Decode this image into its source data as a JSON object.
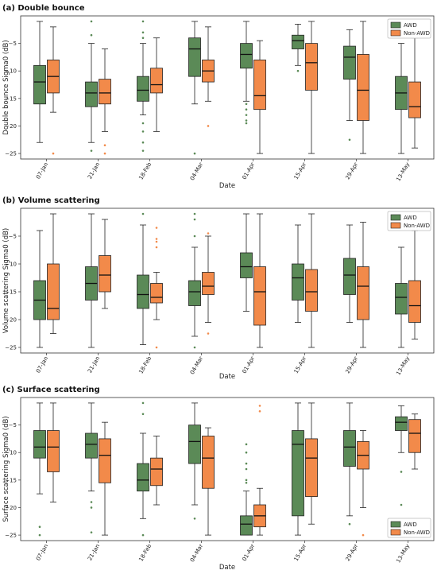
{
  "colors": {
    "awd": "#5b8a57",
    "non_awd": "#f28a4a",
    "awd_flier": "#5b8a57",
    "non_awd_flier": "#f28a4a"
  },
  "chart_data": [
    {
      "type": "box",
      "title": "(a) Double bounce",
      "xlabel": "Date",
      "ylabel": "Double bounce Sigma0 (dB)",
      "ylim": [
        -26,
        0
      ],
      "yticks": [
        -25,
        -20,
        -15,
        -10,
        -5
      ],
      "legend": {
        "position": "top-right",
        "entries": [
          "AWD",
          "Non-AWD"
        ]
      },
      "categories": [
        "07-Jan",
        "21-Jan",
        "18-Feb",
        "04-Mar",
        "01-Apr",
        "15-Apr",
        "29-Apr",
        "13-May"
      ],
      "series": [
        {
          "name": "AWD",
          "boxes": [
            {
              "whislo": -23,
              "q1": -16,
              "med": -12,
              "q3": -9,
              "whishi": -1,
              "fliers": []
            },
            {
              "whislo": -23,
              "q1": -16.5,
              "med": -14,
              "q3": -12,
              "whishi": -5,
              "fliers": [
                -1,
                -3.5,
                -24.5
              ]
            },
            {
              "whislo": -18,
              "q1": -15.5,
              "med": -13.5,
              "q3": -11,
              "whishi": -5,
              "fliers": [
                -1,
                -3,
                -4,
                -19.5,
                -21,
                -23,
                -24.5
              ]
            },
            {
              "whislo": -16,
              "q1": -11,
              "med": -6,
              "q3": -4,
              "whishi": -1,
              "fliers": [
                -25
              ]
            },
            {
              "whislo": -15.5,
              "q1": -9.5,
              "med": -7,
              "q3": -5,
              "whishi": -1,
              "fliers": [
                -16,
                -17,
                -18,
                -19,
                -19.5
              ]
            },
            {
              "whislo": -9,
              "q1": -6,
              "med": -4.5,
              "q3": -3.5,
              "whishi": -1.5,
              "fliers": [
                -10
              ]
            },
            {
              "whislo": -19,
              "q1": -11.5,
              "med": -7.5,
              "q3": -5.5,
              "whishi": -2.5,
              "fliers": [
                -22.5
              ]
            },
            {
              "whislo": -25,
              "q1": -17,
              "med": -14,
              "q3": -11,
              "whishi": -5,
              "fliers": []
            }
          ]
        },
        {
          "name": "Non-AWD",
          "boxes": [
            {
              "whislo": -17.5,
              "q1": -14,
              "med": -11,
              "q3": -8,
              "whishi": -2,
              "fliers": [
                -25
              ]
            },
            {
              "whislo": -21,
              "q1": -16,
              "med": -14,
              "q3": -11.5,
              "whishi": -6,
              "fliers": [
                -23.5,
                -25
              ]
            },
            {
              "whislo": -21,
              "q1": -14,
              "med": -12.5,
              "q3": -9.5,
              "whishi": -4,
              "fliers": []
            },
            {
              "whislo": -15.5,
              "q1": -12,
              "med": -10,
              "q3": -8,
              "whishi": -2,
              "fliers": [
                -20
              ]
            },
            {
              "whislo": -25,
              "q1": -17,
              "med": -14.5,
              "q3": -8,
              "whishi": -4.5,
              "fliers": []
            },
            {
              "whislo": -25,
              "q1": -13.5,
              "med": -8.5,
              "q3": -5,
              "whishi": -1,
              "fliers": []
            },
            {
              "whislo": -25,
              "q1": -19,
              "med": -13.5,
              "q3": -7,
              "whishi": -1,
              "fliers": []
            },
            {
              "whislo": -24,
              "q1": -18.5,
              "med": -16.5,
              "q3": -12,
              "whishi": -4,
              "fliers": []
            }
          ]
        }
      ]
    },
    {
      "type": "box",
      "title": "(b) Volume scattering",
      "xlabel": "Date",
      "ylabel": "Volume scattering Sigma0 (dB)",
      "ylim": [
        -26,
        0
      ],
      "yticks": [
        -25,
        -20,
        -15,
        -10,
        -5
      ],
      "legend": {
        "position": "top-right",
        "entries": [
          "AWD",
          "Non-AWD"
        ]
      },
      "categories": [
        "07-Jan",
        "21-Jan",
        "18-Feb",
        "04-Mar",
        "01-Apr",
        "15-Apr",
        "29-Apr",
        "13-May"
      ],
      "series": [
        {
          "name": "AWD",
          "boxes": [
            {
              "whislo": -25,
              "q1": -20,
              "med": -16.5,
              "q3": -13,
              "whishi": -4,
              "fliers": []
            },
            {
              "whislo": -25,
              "q1": -16.5,
              "med": -13.5,
              "q3": -10.5,
              "whishi": -1,
              "fliers": []
            },
            {
              "whislo": -24.5,
              "q1": -18,
              "med": -15.5,
              "q3": -12,
              "whishi": -3,
              "fliers": [
                -1
              ]
            },
            {
              "whislo": -23,
              "q1": -17.5,
              "med": -15,
              "q3": -13,
              "whishi": -7,
              "fliers": [
                -1,
                -2,
                -5,
                -25
              ]
            },
            {
              "whislo": -18.5,
              "q1": -12.5,
              "med": -10.5,
              "q3": -8,
              "whishi": -1,
              "fliers": []
            },
            {
              "whislo": -20.5,
              "q1": -16.5,
              "med": -12.5,
              "q3": -10,
              "whishi": -3,
              "fliers": []
            },
            {
              "whislo": -20.5,
              "q1": -15.5,
              "med": -12,
              "q3": -9,
              "whishi": -3,
              "fliers": []
            },
            {
              "whislo": -25,
              "q1": -19,
              "med": -16,
              "q3": -13.5,
              "whishi": -7,
              "fliers": []
            }
          ]
        },
        {
          "name": "Non-AWD",
          "boxes": [
            {
              "whislo": -22.5,
              "q1": -20,
              "med": -18,
              "q3": -10,
              "whishi": -1,
              "fliers": []
            },
            {
              "whislo": -18,
              "q1": -15,
              "med": -12,
              "q3": -8.5,
              "whishi": -2,
              "fliers": []
            },
            {
              "whislo": -20,
              "q1": -17,
              "med": -16,
              "q3": -13.5,
              "whishi": -11.5,
              "fliers": [
                -3.5,
                -5.5,
                -6,
                -7,
                -25
              ]
            },
            {
              "whislo": -20.5,
              "q1": -15.5,
              "med": -14,
              "q3": -11.5,
              "whishi": -5,
              "fliers": [
                -4.5,
                -22.5
              ]
            },
            {
              "whislo": -25,
              "q1": -21,
              "med": -15,
              "q3": -10.5,
              "whishi": -1,
              "fliers": []
            },
            {
              "whislo": -25,
              "q1": -18.5,
              "med": -15,
              "q3": -11,
              "whishi": -1,
              "fliers": []
            },
            {
              "whislo": -25,
              "q1": -20,
              "med": -14,
              "q3": -10.5,
              "whishi": -2.5,
              "fliers": []
            },
            {
              "whislo": -23.5,
              "q1": -20.5,
              "med": -17.5,
              "q3": -13,
              "whishi": -4,
              "fliers": []
            }
          ]
        }
      ]
    },
    {
      "type": "box",
      "title": "(c) Surface scattering",
      "xlabel": "Date",
      "ylabel": "Surface scattering Sigma0 (dB)",
      "ylim": [
        -26,
        0
      ],
      "yticks": [
        -25,
        -20,
        -15,
        -10,
        -5
      ],
      "legend": {
        "position": "bottom-right",
        "entries": [
          "AWD",
          "Non-AWD"
        ]
      },
      "categories": [
        "07-Jan",
        "21-Jan",
        "18-Feb",
        "04-Mar",
        "01-Apr",
        "15-Apr",
        "29-Apr",
        "13-May"
      ],
      "series": [
        {
          "name": "AWD",
          "boxes": [
            {
              "whislo": -17.5,
              "q1": -11,
              "med": -9,
              "q3": -6,
              "whishi": -1,
              "fliers": [
                -23.5,
                -25
              ]
            },
            {
              "whislo": -17,
              "q1": -11,
              "med": -8.5,
              "q3": -6.5,
              "whishi": -1,
              "fliers": [
                -19,
                -20,
                -24.5
              ]
            },
            {
              "whislo": -22,
              "q1": -17,
              "med": -15,
              "q3": -12,
              "whishi": -6.5,
              "fliers": [
                -1,
                -3,
                -25
              ]
            },
            {
              "whislo": -19.5,
              "q1": -12,
              "med": -8,
              "q3": -5,
              "whishi": -1,
              "fliers": [
                -22
              ]
            },
            {
              "whislo": -25,
              "q1": -25,
              "med": -23,
              "q3": -21.5,
              "whishi": -17,
              "fliers": [
                -8.5,
                -10,
                -12,
                -13,
                -15,
                -15.5
              ]
            },
            {
              "whislo": -25,
              "q1": -21.5,
              "med": -8.5,
              "q3": -6,
              "whishi": -1,
              "fliers": []
            },
            {
              "whislo": -21.5,
              "q1": -12.5,
              "med": -9,
              "q3": -6,
              "whishi": -1,
              "fliers": [
                -23
              ]
            },
            {
              "whislo": -10,
              "q1": -6,
              "med": -4.5,
              "q3": -3.5,
              "whishi": -1.5,
              "fliers": [
                -13.5,
                -19.5
              ]
            }
          ]
        },
        {
          "name": "Non-AWD",
          "boxes": [
            {
              "whislo": -19,
              "q1": -13.5,
              "med": -9,
              "q3": -6,
              "whishi": -1,
              "fliers": []
            },
            {
              "whislo": -25,
              "q1": -15.5,
              "med": -10.5,
              "q3": -7.5,
              "whishi": -4.5,
              "fliers": []
            },
            {
              "whislo": -19.5,
              "q1": -16,
              "med": -13,
              "q3": -11,
              "whishi": -7,
              "fliers": []
            },
            {
              "whislo": -25,
              "q1": -16.5,
              "med": -11,
              "q3": -7,
              "whishi": -5.5,
              "fliers": []
            },
            {
              "whislo": -25,
              "q1": -23.5,
              "med": -21.5,
              "q3": -19.5,
              "whishi": -16.5,
              "fliers": [
                -1.5,
                -2.5
              ]
            },
            {
              "whislo": -23,
              "q1": -18,
              "med": -11,
              "q3": -7.5,
              "whishi": -1,
              "fliers": []
            },
            {
              "whislo": -20,
              "q1": -13,
              "med": -10.5,
              "q3": -8,
              "whishi": -6,
              "fliers": [
                -25
              ]
            },
            {
              "whislo": -13,
              "q1": -10,
              "med": -6.5,
              "q3": -4,
              "whishi": -3,
              "fliers": []
            }
          ]
        }
      ]
    }
  ]
}
